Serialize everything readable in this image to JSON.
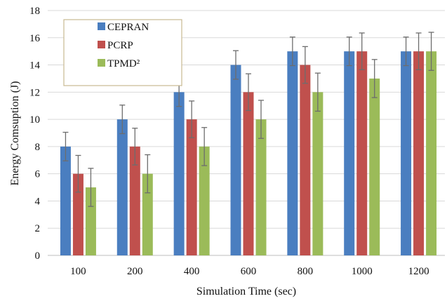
{
  "chart_data": {
    "type": "bar",
    "title": "",
    "xlabel": "Simulation Time (sec)",
    "ylabel": "Energy Comsuption (J)",
    "categories": [
      "100",
      "200",
      "400",
      "600",
      "800",
      "1000",
      "1200"
    ],
    "ylim": [
      0,
      18
    ],
    "yticks": [
      0,
      2,
      4,
      6,
      8,
      10,
      12,
      14,
      16,
      18
    ],
    "grid": true,
    "legend_position": "top-left",
    "series": [
      {
        "name": "CEPRAN",
        "color": "#4a7ec0",
        "values": [
          8,
          10,
          12,
          14,
          15,
          15,
          15
        ],
        "error": [
          1.05,
          1.05,
          1.05,
          1.05,
          1.05,
          1.05,
          1.05
        ]
      },
      {
        "name": "PCRP",
        "color": "#c0504d",
        "values": [
          6,
          8,
          10,
          12,
          14,
          15,
          15
        ],
        "error": [
          1.35,
          1.35,
          1.35,
          1.35,
          1.35,
          1.35,
          1.35
        ]
      },
      {
        "name": "TPMD²",
        "color": "#9bbb59",
        "values": [
          5,
          6,
          8,
          10,
          12,
          13,
          15
        ],
        "error": [
          1.4,
          1.4,
          1.4,
          1.4,
          1.4,
          1.4,
          1.4
        ]
      }
    ]
  }
}
